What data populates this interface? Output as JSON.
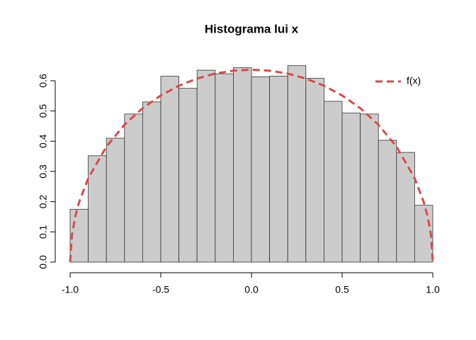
{
  "chart_data": {
    "type": "histogram",
    "title": "Histograma lui x",
    "bins": [
      -1.0,
      -0.9,
      -0.8,
      -0.7,
      -0.6,
      -0.5,
      -0.4,
      -0.3,
      -0.2,
      -0.1,
      0.0,
      0.1,
      0.2,
      0.3,
      0.4,
      0.5,
      0.6,
      0.7,
      0.8,
      0.9,
      1.0
    ],
    "counts": [
      0.175,
      0.352,
      0.41,
      0.49,
      0.53,
      0.615,
      0.575,
      0.635,
      0.623,
      0.643,
      0.613,
      0.615,
      0.65,
      0.608,
      0.532,
      0.493,
      0.49,
      0.403,
      0.363,
      0.188
    ],
    "color": "#cccccc",
    "series": [
      {
        "name": "f(x)",
        "type": "line",
        "color": "#d94a4a",
        "dashed": true,
        "x": [
          -1.0,
          -0.99,
          -0.97,
          -0.95,
          -0.9,
          -0.8,
          -0.7,
          -0.6,
          -0.5,
          -0.4,
          -0.3,
          -0.2,
          -0.1,
          0.0,
          0.1,
          0.2,
          0.3,
          0.4,
          0.5,
          0.6,
          0.7,
          0.8,
          0.9,
          0.95,
          0.97,
          0.99,
          1.0
        ],
        "values": [
          0,
          0.0898,
          0.1548,
          0.1988,
          0.2775,
          0.382,
          0.4546,
          0.5093,
          0.5513,
          0.5835,
          0.6073,
          0.6237,
          0.6334,
          0.6366,
          0.6334,
          0.6237,
          0.6073,
          0.5835,
          0.5513,
          0.5093,
          0.4546,
          0.382,
          0.2775,
          0.1988,
          0.1548,
          0.0898,
          0
        ]
      }
    ],
    "xlim": [
      -1.0,
      1.0
    ],
    "ylim": [
      0,
      0.65
    ],
    "xticks": [
      {
        "value": -1.0,
        "label": "-1.0"
      },
      -0.5,
      {
        "value": 0,
        "label": "0.0"
      },
      0.5,
      {
        "value": 1.0,
        "label": "1.0"
      }
    ],
    "yticks": [
      {
        "value": 0,
        "label": "0.0"
      },
      0.1,
      0.2,
      0.3,
      0.4,
      0.5,
      0.6
    ],
    "legend": "topright"
  }
}
